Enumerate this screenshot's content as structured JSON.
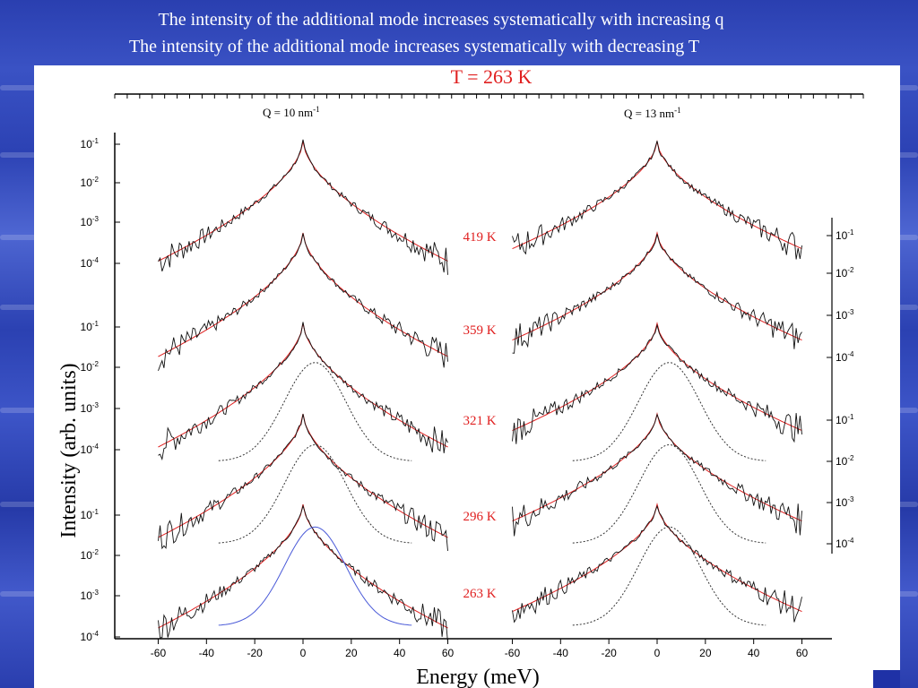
{
  "slide": {
    "title_line1": "The intensity of the additional mode increases systematically with increasing q",
    "title_line2": "The intensity of the additional mode increases systematically with decreasing T"
  },
  "colors": {
    "background": "#2f46b8",
    "data_black": "#111111",
    "fit_red": "#e02020",
    "mode_blue": "#4a5ad8",
    "label_red": "#e02020"
  },
  "chart_data": {
    "type": "line",
    "title": "T = 263 K",
    "xlabel": "Energy (meV)",
    "ylabel": "Intensity (arb. units)",
    "xlim": [
      -65,
      65
    ],
    "x_ticks": [
      -60,
      -40,
      -20,
      0,
      20,
      40,
      60
    ],
    "y_tick_labels_left": [
      "10-1",
      "10-2",
      "10-3",
      "10-4",
      "10-1",
      "10-2",
      "10-3",
      "10-4",
      "10-1",
      "10-2",
      "10-3",
      "10-4"
    ],
    "y_tick_labels_right": [
      "10-1",
      "10-2",
      "10-3",
      "10-4",
      "10-1",
      "10-2",
      "10-3",
      "10-4"
    ],
    "scale": "log",
    "panels": [
      {
        "name": "Q = 10 nm-1",
        "q_label": "Q = 10 nm",
        "q_sup": "-1"
      },
      {
        "name": "Q = 13 nm-1",
        "q_label": "Q = 13 nm",
        "q_sup": "-1"
      }
    ],
    "temperatures": [
      "419 K",
      "359 K",
      "321 K",
      "296 K",
      "263 K"
    ],
    "series": [
      {
        "panel": 0,
        "temperature": "419 K",
        "peak_log10": -1.0,
        "tail_log10": -3.9
      },
      {
        "panel": 0,
        "temperature": "359 K",
        "peak_log10": -1.0,
        "tail_log10": -4.0
      },
      {
        "panel": 0,
        "temperature": "321 K",
        "peak_log10": -1.0,
        "tail_log10": -4.0
      },
      {
        "panel": 0,
        "temperature": "296 K",
        "peak_log10": -1.0,
        "tail_log10": -4.0
      },
      {
        "panel": 0,
        "temperature": "263 K",
        "peak_log10": -1.0,
        "tail_log10": -4.0
      },
      {
        "panel": 1,
        "temperature": "419 K",
        "peak_log10": -1.0,
        "tail_log10": -3.6
      },
      {
        "panel": 1,
        "temperature": "359 K",
        "peak_log10": -1.0,
        "tail_log10": -3.6
      },
      {
        "panel": 1,
        "temperature": "321 K",
        "peak_log10": -1.0,
        "tail_log10": -3.6
      },
      {
        "panel": 1,
        "temperature": "296 K",
        "peak_log10": -1.0,
        "tail_log10": -3.6
      },
      {
        "panel": 1,
        "temperature": "263 K",
        "peak_log10": -1.0,
        "tail_log10": -3.6
      }
    ],
    "grid": false
  }
}
